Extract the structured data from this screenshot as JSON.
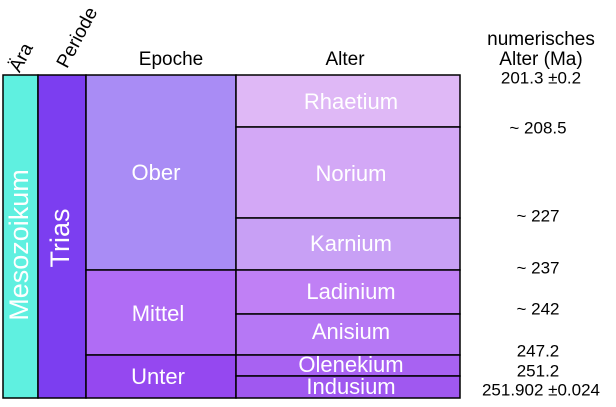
{
  "headers": {
    "era": "Ära",
    "period": "Periode",
    "epoch": "Epoche",
    "stage": "Alter",
    "age": [
      "numerisches",
      "Alter (Ma)"
    ]
  },
  "era": "Mesozoikum",
  "period": "Trias",
  "epochs": [
    "Ober",
    "Mittel",
    "Unter"
  ],
  "stages": [
    "Rhaetium",
    "Norium",
    "Karnium",
    "Ladinium",
    "Anisium",
    "Olenekium",
    "Indusium"
  ],
  "ages": [
    "201.3 ±0.2",
    "~ 208.5",
    "~ 227",
    "~ 237",
    "~ 242",
    "247.2",
    "251.2",
    "251.902 ±0.024"
  ]
}
